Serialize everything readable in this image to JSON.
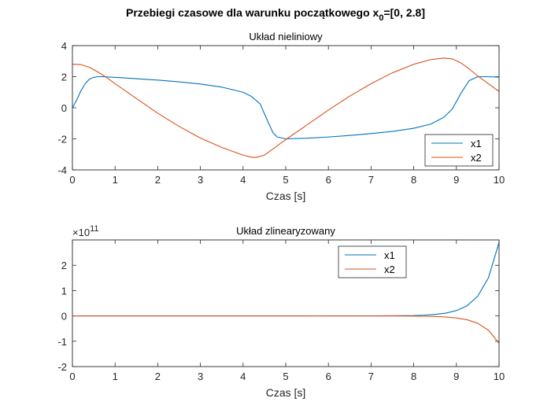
{
  "figure": {
    "suptitle": "Przebiegi czasowe dla warunku początkowego x",
    "suptitle_sub": "0",
    "suptitle_tail": "=[0, 2.8]"
  },
  "chart_data": [
    {
      "type": "line",
      "title": "Układ nieliniowy",
      "xlabel": "Czas [s]",
      "ylabel": "",
      "xlim": [
        0,
        10
      ],
      "ylim": [
        -4,
        4
      ],
      "xticks": [
        0,
        1,
        2,
        3,
        4,
        5,
        6,
        7,
        8,
        9,
        10
      ],
      "yticks": [
        -4,
        -2,
        0,
        2,
        4
      ],
      "grid": false,
      "legend_position": "bottom-right",
      "series": [
        {
          "name": "x1",
          "color": "#0072BD",
          "x": [
            0,
            0.1,
            0.2,
            0.3,
            0.4,
            0.5,
            0.6,
            0.7,
            1,
            1.5,
            2,
            2.5,
            3,
            3.5,
            4,
            4.2,
            4.4,
            4.6,
            4.7,
            4.8,
            5,
            5.5,
            6,
            6.5,
            7,
            7.5,
            8,
            8.4,
            8.7,
            8.9,
            9.1,
            9.3,
            9.5,
            9.7,
            10
          ],
          "y": [
            0,
            0.5,
            1.1,
            1.55,
            1.85,
            1.96,
            2.0,
            2.0,
            1.96,
            1.87,
            1.78,
            1.67,
            1.53,
            1.33,
            1.0,
            0.72,
            0.25,
            -1.0,
            -1.6,
            -1.88,
            -2.0,
            -1.96,
            -1.88,
            -1.78,
            -1.66,
            -1.52,
            -1.32,
            -1.05,
            -0.62,
            -0.1,
            0.9,
            1.75,
            2.0,
            2.0,
            1.97
          ]
        },
        {
          "name": "x2",
          "color": "#D95319",
          "x": [
            0,
            0.2,
            0.4,
            0.6,
            0.8,
            1,
            1.5,
            2,
            2.5,
            3,
            3.5,
            4,
            4.2,
            4.3,
            4.5,
            4.8,
            5,
            5.5,
            6,
            6.5,
            7,
            7.5,
            8,
            8.4,
            8.7,
            8.9,
            9.1,
            9.3,
            9.5,
            9.7,
            10
          ],
          "y": [
            2.8,
            2.78,
            2.6,
            2.3,
            1.95,
            1.55,
            0.6,
            -0.35,
            -1.2,
            -1.95,
            -2.55,
            -3.05,
            -3.18,
            -3.2,
            -3.05,
            -2.45,
            -2.05,
            -1.1,
            -0.15,
            0.75,
            1.55,
            2.25,
            2.8,
            3.1,
            3.2,
            3.15,
            2.9,
            2.5,
            2.05,
            1.65,
            1.05
          ]
        }
      ]
    },
    {
      "type": "line",
      "title": "Układ zlinearyzowany",
      "xlabel": "Czas [s]",
      "ylabel": "",
      "y_exponent_base": "×10",
      "y_exponent_power": "11",
      "xlim": [
        0,
        10
      ],
      "ylim": [
        -2,
        3
      ],
      "xticks": [
        0,
        1,
        2,
        3,
        4,
        5,
        6,
        7,
        8,
        9,
        10
      ],
      "yticks": [
        -2,
        -1,
        0,
        1,
        2
      ],
      "grid": false,
      "legend_position": "top-center",
      "series": [
        {
          "name": "x1",
          "color": "#0072BD",
          "x": [
            0,
            5,
            7,
            7.5,
            8,
            8.25,
            8.5,
            8.75,
            9,
            9.25,
            9.5,
            9.75,
            10
          ],
          "y": [
            0,
            0,
            0.001,
            0.004,
            0.015,
            0.03,
            0.06,
            0.11,
            0.21,
            0.4,
            0.78,
            1.5,
            2.9
          ]
        },
        {
          "name": "x2",
          "color": "#D95319",
          "x": [
            0,
            5,
            7,
            7.5,
            8,
            8.25,
            8.5,
            8.75,
            9,
            9.25,
            9.5,
            9.75,
            10
          ],
          "y": [
            0,
            0,
            -0.0005,
            -0.0015,
            -0.006,
            -0.012,
            -0.023,
            -0.043,
            -0.08,
            -0.15,
            -0.29,
            -0.56,
            -1.08
          ]
        }
      ]
    }
  ]
}
